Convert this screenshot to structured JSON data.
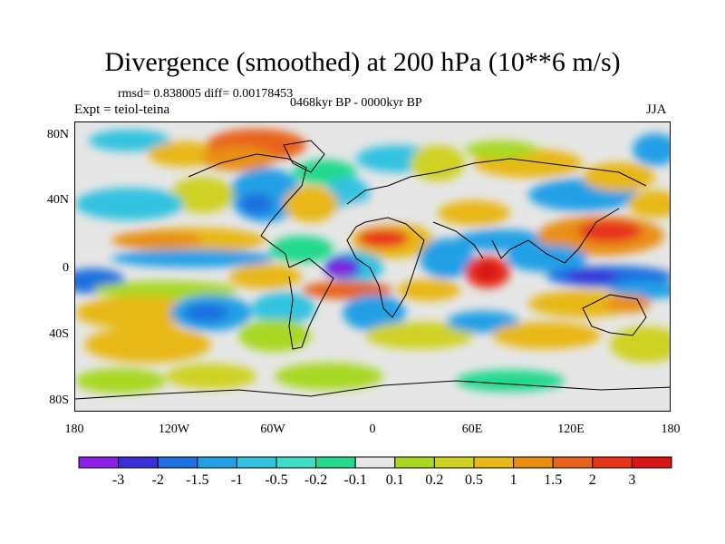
{
  "title": "Divergence (smoothed) at 200 hPa (10**6 m/s)",
  "stats": {
    "rmsd": "rmsd= 0.838005",
    "diff": "diff= 0.00178453"
  },
  "period": "0468kyr BP - 0000kyr BP",
  "experiment": "Expt = teiol-teina",
  "season": "JJA",
  "lat_labels": [
    "80N",
    "40N",
    "0",
    "40S",
    "80S"
  ],
  "lon_labels": [
    "180",
    "120W",
    "60W",
    "0",
    "60E",
    "120E",
    "180"
  ],
  "colorbar": {
    "labels": [
      "-3",
      "-2",
      "-1.5",
      "-1",
      "-0.5",
      "-0.2",
      "-0.1",
      "0.1",
      "0.2",
      "0.5",
      "1",
      "1.5",
      "2",
      "3"
    ],
    "colors": [
      "#8f1fe6",
      "#3b2fd9",
      "#1f6fe0",
      "#22a0e6",
      "#33c3e0",
      "#3fdcc8",
      "#22d98e",
      "#e6e6e6",
      "#a8d820",
      "#cfd222",
      "#e8b818",
      "#e88f12",
      "#e8641a",
      "#e8321a",
      "#d81414"
    ]
  }
}
